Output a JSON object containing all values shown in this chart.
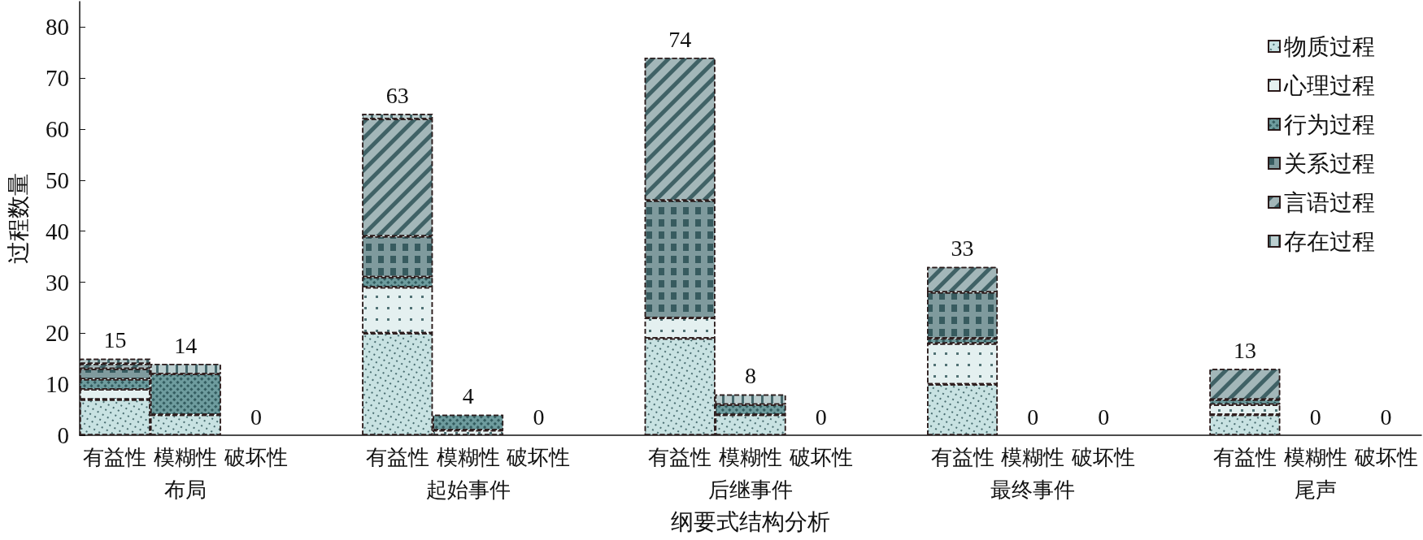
{
  "chart_data": {
    "type": "bar",
    "xlabel": "纲要式结构分析",
    "ylabel": "过程数量",
    "categories": [
      "有益性",
      "模糊性",
      "破坏性",
      "有益性",
      "模糊性",
      "破坏性",
      "有益性",
      "模糊性",
      "破坏性",
      "有益性",
      "模糊性",
      "破坏性",
      "有益性",
      "模糊性",
      "破坏性"
    ],
    "annotations": [
      "布局",
      "起始事件",
      "后继事件",
      "最终事件",
      "尾声"
    ],
    "series": [
      {
        "name": "物质过程",
        "color": "#c8e2e2",
        "values": [
          7,
          4,
          0,
          20,
          0,
          0,
          19,
          4,
          0,
          10,
          0,
          0,
          4,
          0,
          0
        ]
      },
      {
        "name": "心理过程",
        "color": "#e4f0f0",
        "values": [
          2,
          0,
          0,
          9,
          1,
          0,
          4,
          0,
          0,
          8,
          0,
          0,
          2,
          0,
          0
        ]
      },
      {
        "name": "行为过程",
        "color": "#6e9c9e",
        "values": [
          2,
          8,
          0,
          2,
          3,
          0,
          0,
          2,
          0,
          1,
          0,
          0,
          1,
          0,
          0
        ]
      },
      {
        "name": "关系过程",
        "color": "#7f9a9d",
        "values": [
          2,
          0,
          0,
          8,
          0,
          0,
          23,
          0,
          0,
          9,
          0,
          0,
          0,
          0,
          0
        ]
      },
      {
        "name": "言语过程",
        "color": "#a3b7b9",
        "values": [
          1,
          0,
          0,
          23,
          0,
          0,
          28,
          0,
          0,
          5,
          0,
          0,
          6,
          0,
          0
        ]
      },
      {
        "name": "存在过程",
        "color": "#bccfd0",
        "values": [
          1,
          2,
          0,
          1,
          0,
          0,
          0,
          2,
          0,
          0,
          0,
          0,
          0,
          0,
          0
        ]
      }
    ],
    "stacked": true,
    "totals": [
      "15",
      "14",
      "0",
      "63",
      "4",
      "0",
      "74",
      "8",
      "0",
      "33",
      "0",
      "0",
      "13",
      "0",
      "0"
    ],
    "ylim": [
      0,
      85
    ],
    "yticks": [
      0,
      10,
      20,
      30,
      40,
      50,
      60,
      70,
      80
    ],
    "legend": "top right"
  }
}
